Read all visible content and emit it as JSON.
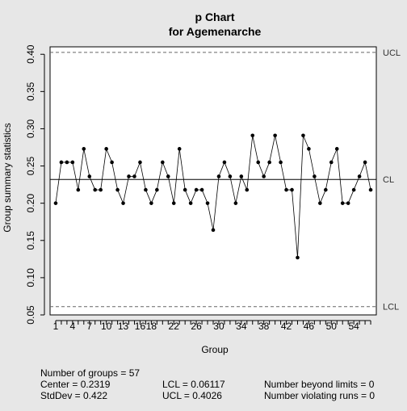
{
  "chart_data": {
    "type": "line",
    "title": "p Chart",
    "subtitle": "for Agemenarche",
    "xlabel": "Group",
    "ylabel": "Group summary statistics",
    "xlim": [
      0,
      58
    ],
    "ylim": [
      0.05,
      0.41
    ],
    "x_ticks": [
      1,
      4,
      7,
      10,
      13,
      16,
      18,
      22,
      26,
      30,
      34,
      38,
      42,
      46,
      50,
      54
    ],
    "x_tick_labels": [
      "1",
      "4",
      "7",
      "10",
      "13",
      "16",
      "18",
      "22",
      "26",
      "30",
      "34",
      "38",
      "42",
      "46",
      "50",
      "54"
    ],
    "y_ticks": [
      0.05,
      0.1,
      0.15,
      0.2,
      0.25,
      0.3,
      0.35,
      0.4
    ],
    "y_tick_labels": [
      "0.05",
      "0.10",
      "0.15",
      "0.20",
      "0.25",
      "0.30",
      "0.35",
      "0.40"
    ],
    "series": [
      {
        "x": [
          1,
          2,
          3,
          4,
          5,
          6,
          7,
          8,
          9,
          10,
          11,
          12,
          13,
          14,
          15,
          16,
          17,
          18,
          19,
          20,
          21,
          22,
          23,
          24,
          25,
          26,
          27,
          28,
          29,
          30,
          31,
          32,
          33,
          34,
          35,
          36,
          37,
          38,
          39,
          40,
          41,
          42,
          43,
          44,
          45,
          46,
          47,
          48,
          49,
          50,
          51,
          52,
          53,
          54,
          55,
          56,
          57
        ],
        "values": [
          0.2,
          0.255,
          0.255,
          0.255,
          0.218,
          0.273,
          0.236,
          0.218,
          0.218,
          0.273,
          0.255,
          0.218,
          0.2,
          0.236,
          0.236,
          0.255,
          0.218,
          0.2,
          0.218,
          0.255,
          0.236,
          0.2,
          0.273,
          0.218,
          0.2,
          0.218,
          0.218,
          0.2,
          0.164,
          0.236,
          0.255,
          0.236,
          0.2,
          0.236,
          0.218,
          0.291,
          0.255,
          0.236,
          0.255,
          0.291,
          0.255,
          0.218,
          0.218,
          0.127,
          0.291,
          0.273,
          0.236,
          0.2,
          0.218,
          0.255,
          0.273,
          0.2,
          0.2,
          0.218,
          0.236,
          0.255,
          0.218
        ]
      }
    ],
    "control_limits": [
      {
        "label": "UCL",
        "value": 0.4026,
        "style": "dashed"
      },
      {
        "label": "CL",
        "value": 0.2319,
        "style": "solid"
      },
      {
        "label": "LCL",
        "value": 0.06117,
        "style": "dashed"
      }
    ]
  },
  "stats": {
    "groups": "Number of groups = 57",
    "center": "Center = 0.2319",
    "stddev": "StdDev = 0.422",
    "lcl": "LCL = 0.06117",
    "ucl": "UCL = 0.4026",
    "beyond": "Number beyond limits = 0",
    "violating": "Number violating runs = 0"
  }
}
